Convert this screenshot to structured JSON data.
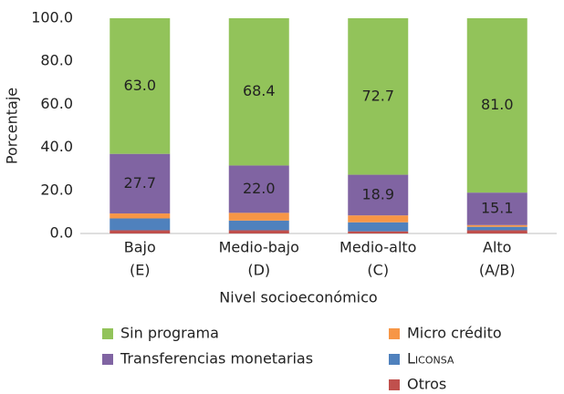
{
  "chart_data": {
    "type": "stacked_bar",
    "xlabel": "Nivel socioeconómico",
    "ylabel": "Porcentaje",
    "categories": [
      [
        "Bajo",
        "(E)"
      ],
      [
        "Medio-bajo",
        "(D)"
      ],
      [
        "Medio-alto",
        "(C)"
      ],
      [
        "Alto",
        "(A/B)"
      ]
    ],
    "series": [
      {
        "name": "Otros",
        "color": "#c0504d",
        "values": [
          1.5,
          1.5,
          1.0,
          1.5
        ]
      },
      {
        "name": "Liconsa",
        "color": "#4f81bd",
        "values": [
          5.5,
          4.5,
          4.2,
          1.6
        ]
      },
      {
        "name": "Micro crédito",
        "color": "#f79646",
        "values": [
          2.3,
          3.6,
          3.2,
          0.8
        ]
      },
      {
        "name": "Transferencias monetarias",
        "color": "#8064a2",
        "values": [
          27.7,
          22.0,
          18.9,
          15.1
        ],
        "value_labels": [
          "27.7",
          "22.0",
          "18.9",
          "15.1"
        ]
      },
      {
        "name": "Sin programa",
        "color": "#92c35a",
        "values": [
          63.0,
          68.4,
          72.7,
          81.0
        ],
        "value_labels": [
          "63.0",
          "68.4",
          "72.7",
          "81.0"
        ]
      }
    ],
    "ylim": [
      0,
      100
    ],
    "yticks": [
      {
        "value": 0,
        "label": "0.0"
      },
      {
        "value": 20,
        "label": "20.0"
      },
      {
        "value": 40,
        "label": "40.0"
      },
      {
        "value": 60,
        "label": "60.0"
      },
      {
        "value": 80,
        "label": "80.0"
      },
      {
        "value": 100,
        "label": "100.0"
      }
    ],
    "grid": false
  }
}
